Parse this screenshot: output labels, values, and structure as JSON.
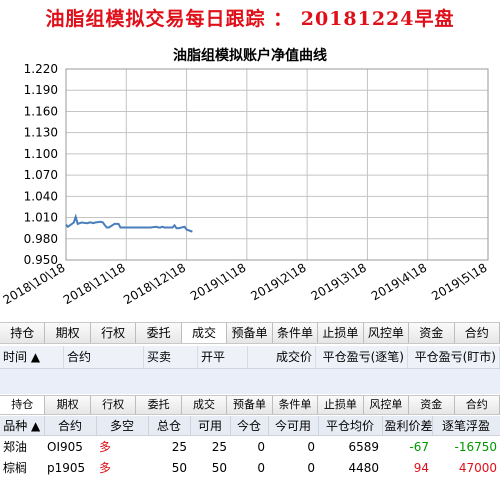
{
  "headline": "油脂组模拟交易每日跟踪 ： 20181224早盘",
  "chart_data": {
    "type": "line",
    "title": "油脂组模拟账户净值曲线",
    "ylim": [
      0.95,
      1.22
    ],
    "yticks": [
      "0.950",
      "0.980",
      "1.010",
      "1.040",
      "1.070",
      "1.100",
      "1.130",
      "1.160",
      "1.190",
      "1.220"
    ],
    "xticks": [
      "2018\\10\\18",
      "2018\\11\\18",
      "2018\\12\\18",
      "2019\\1\\18",
      "2019\\2\\18",
      "2019\\3\\18",
      "2019\\4\\18",
      "2019\\5\\18"
    ],
    "grid": true,
    "color": "#4a7ebb",
    "series": [
      {
        "x": [
          "2018-10-18",
          "2018-10-19",
          "2018-10-22",
          "2018-10-23",
          "2018-10-24",
          "2018-10-25",
          "2018-10-26",
          "2018-10-29",
          "2018-10-30",
          "2018-10-31",
          "2018-11-01",
          "2018-11-02",
          "2018-11-05",
          "2018-11-06",
          "2018-11-07",
          "2018-11-08",
          "2018-11-09",
          "2018-11-12",
          "2018-11-13",
          "2018-11-14",
          "2018-11-15",
          "2018-11-16",
          "2018-11-19",
          "2018-11-20",
          "2018-11-21",
          "2018-11-22",
          "2018-11-23",
          "2018-11-26",
          "2018-11-27",
          "2018-11-28",
          "2018-11-29",
          "2018-11-30",
          "2018-12-03",
          "2018-12-04",
          "2018-12-05",
          "2018-12-06",
          "2018-12-07",
          "2018-12-10",
          "2018-12-11",
          "2018-12-12",
          "2018-12-13",
          "2018-12-14",
          "2018-12-17",
          "2018-12-18",
          "2018-12-19",
          "2018-12-20",
          "2018-12-21"
        ],
        "values": [
          1.0,
          0.997,
          1.003,
          1.011,
          1.001,
          1.002,
          1.003,
          1.002,
          1.003,
          1.003,
          1.002,
          1.003,
          1.004,
          1.003,
          0.999,
          0.996,
          0.996,
          1.001,
          1.001,
          1.001,
          0.996,
          0.996,
          0.996,
          0.996,
          0.996,
          0.996,
          0.996,
          0.996,
          0.996,
          0.996,
          0.996,
          0.996,
          0.997,
          0.996,
          0.996,
          0.997,
          0.996,
          0.996,
          0.996,
          0.999,
          0.995,
          0.995,
          0.997,
          0.993,
          0.992,
          0.991,
          0.99
        ]
      }
    ]
  },
  "tabs1": [
    "持仓",
    "期权",
    "行权",
    "委托",
    "成交",
    "预备单",
    "条件单",
    "止损单",
    "风控单",
    "资金",
    "合约"
  ],
  "tabs1_active": 4,
  "trade_header": [
    "时间 ▲",
    "合约",
    "买卖",
    "开平",
    "成交价",
    "平仓盈亏(逐笔)",
    "平仓盈亏(盯市)"
  ],
  "tabs2": [
    "持仓",
    "期权",
    "行权",
    "委托",
    "成交",
    "预备单",
    "条件单",
    "止损单",
    "风控单",
    "资金",
    "合约"
  ],
  "tabs2_active": 0,
  "positions": {
    "headers": [
      "品种 ▲",
      "合约",
      "多空",
      "总仓",
      "可用",
      "今仓",
      "今可用",
      "平仓均价",
      "盈利价差",
      "逐笔浮盈"
    ],
    "rows": [
      {
        "name": "郑油",
        "code": "OI905",
        "side": "多",
        "total": "25",
        "avail": "25",
        "today": "0",
        "today_avail": "0",
        "avg": "6589",
        "diff": "-67",
        "pnl": "-16750"
      },
      {
        "name": "棕榈",
        "code": "p1905",
        "side": "多",
        "total": "50",
        "avail": "50",
        "today": "0",
        "today_avail": "0",
        "avg": "4480",
        "diff": "94",
        "pnl": "47000"
      }
    ]
  }
}
